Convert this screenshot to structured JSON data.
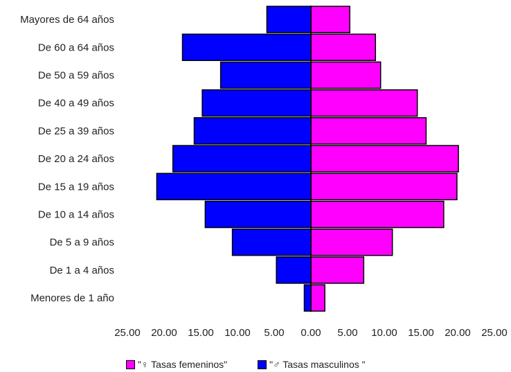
{
  "chart_data": {
    "type": "bar",
    "orientation": "horizontal",
    "layout": "population-pyramid",
    "categories": [
      "Mayores de 64 años",
      "De 60 a 64 años",
      "De 50 a 59 años",
      "De 40 a 49 años",
      "De 25 a 39 años",
      "De 20 a 24 años",
      "De 15 a 19 años",
      "De 10 a 14 años",
      "De 5 a 9 años",
      "De 1 a 4 años",
      "Menores de 1 año"
    ],
    "series": [
      {
        "name": "\"♀ Tasas femeninos\"",
        "side": "right",
        "color": "#ff00ff",
        "values": [
          5.3,
          8.8,
          9.5,
          14.5,
          15.7,
          20.1,
          19.9,
          18.1,
          11.1,
          7.2,
          1.9
        ]
      },
      {
        "name": "\"♂ Tasas masculinos \"",
        "side": "left",
        "color": "#0000ff",
        "values": [
          6.0,
          17.5,
          12.3,
          14.8,
          15.9,
          18.8,
          21.0,
          14.4,
          10.7,
          4.7,
          0.9
        ]
      }
    ],
    "xlim": [
      -25,
      25
    ],
    "x_ticks": [
      "25.00",
      "20.00",
      "15.00",
      "10.00",
      "5.00",
      "0.00",
      "5.00",
      "10.00",
      "15.00",
      "20.00",
      "25.00"
    ],
    "title": "",
    "xlabel": "",
    "ylabel": "",
    "grid": false,
    "legend_position": "bottom"
  }
}
